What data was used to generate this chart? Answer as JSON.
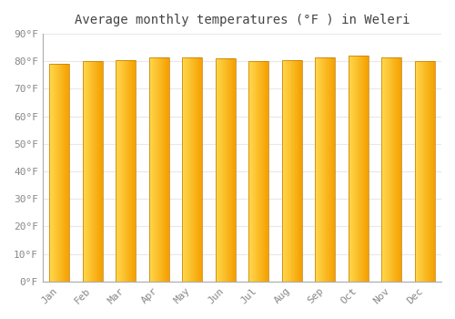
{
  "title": "Average monthly temperatures (°F ) in Weleri",
  "months": [
    "Jan",
    "Feb",
    "Mar",
    "Apr",
    "May",
    "Jun",
    "Jul",
    "Aug",
    "Sep",
    "Oct",
    "Nov",
    "Dec"
  ],
  "values": [
    79,
    80,
    80.5,
    81.5,
    81.5,
    81,
    80,
    80.5,
    81.5,
    82,
    81.5,
    80
  ],
  "ylim": [
    0,
    90
  ],
  "ytick_step": 10,
  "bar_color_left": "#FFD84D",
  "bar_color_right": "#F5A000",
  "background_color": "#ffffff",
  "plot_background": "#ffffff",
  "grid_color": "#e8e8e8",
  "title_fontsize": 10,
  "tick_fontsize": 8,
  "bar_edge_color": "#C07800",
  "bar_width": 0.6
}
